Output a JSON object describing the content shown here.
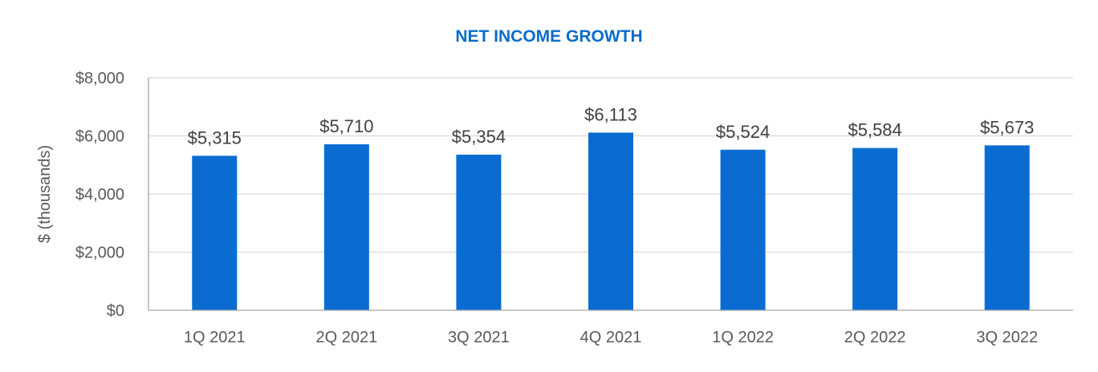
{
  "chart_data": {
    "type": "bar",
    "title": "NET INCOME GROWTH",
    "xlabel": "",
    "ylabel": "$ (thousands)",
    "categories": [
      "1Q 2021",
      "2Q 2021",
      "3Q 2021",
      "4Q 2021",
      "1Q 2022",
      "2Q 2022",
      "3Q 2022"
    ],
    "values": [
      5315,
      5710,
      5354,
      6113,
      5524,
      5584,
      5673
    ],
    "data_labels": [
      "$5,315",
      "$5,710",
      "$5,354",
      "$6,113",
      "$5,524",
      "$5,584",
      "$5,673"
    ],
    "ylim": [
      0,
      8000
    ],
    "yticks": [
      0,
      2000,
      4000,
      6000,
      8000
    ],
    "ytick_labels": [
      "$0",
      "$2,000",
      "$4,000",
      "$6,000",
      "$8,000"
    ],
    "grid": true,
    "legend": "none",
    "colors": {
      "bar": "#0a6cd1",
      "title": "#0a6cc9"
    }
  }
}
